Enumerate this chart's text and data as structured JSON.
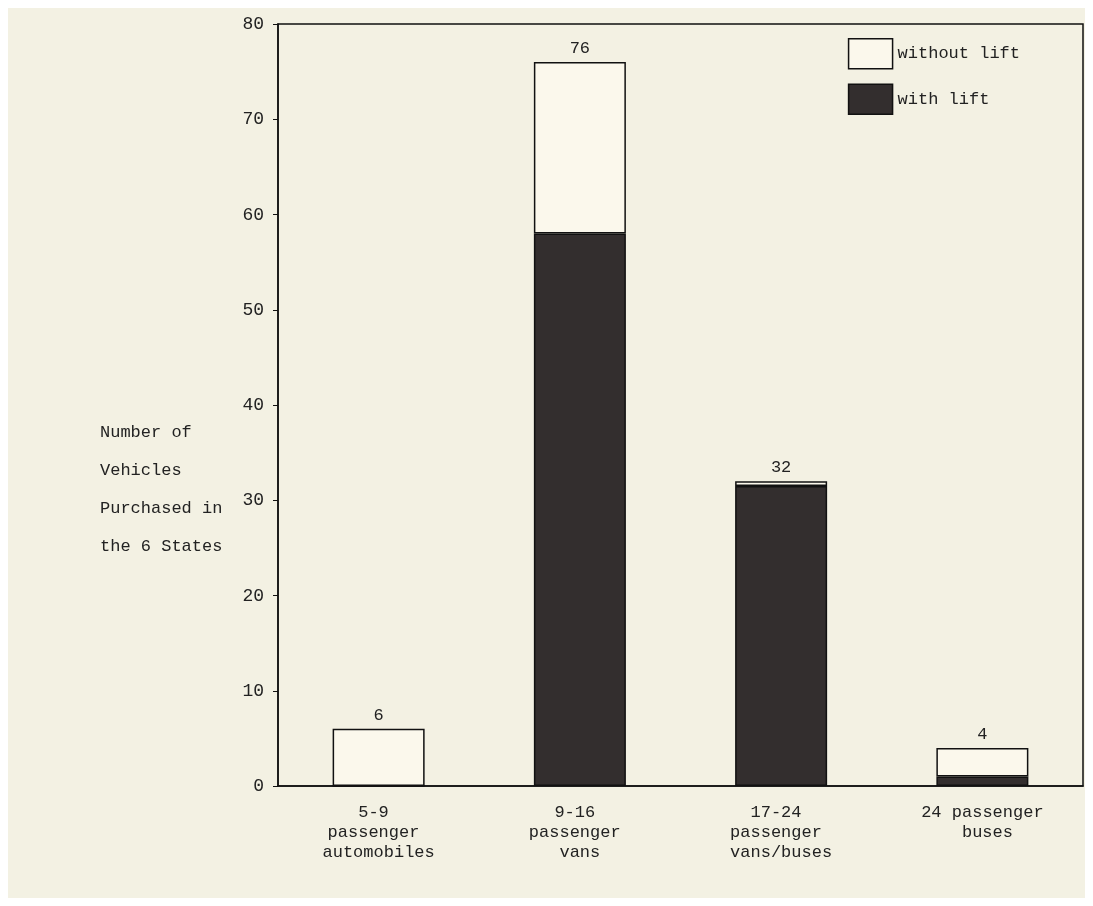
{
  "chart_data": {
    "type": "bar",
    "stacked": true,
    "ylabel": "Number of Vehicles Purchased in the 6 States",
    "categories": [
      "5-9 passenger automobiles",
      "9-16 passenger vans",
      "17-24 passenger vans/buses",
      "24 passenger buses"
    ],
    "series": [
      {
        "name": "with lift",
        "color": "#332e2e",
        "values": [
          0,
          58,
          31.5,
          1
        ]
      },
      {
        "name": "without lift",
        "color": "#fbf8ec",
        "values": [
          6,
          18,
          0.5,
          3
        ]
      }
    ],
    "totals": [
      "6",
      "76",
      "32",
      "4"
    ],
    "ylim": [
      0,
      80
    ],
    "yticks": [
      0,
      10,
      20,
      30,
      40,
      50,
      60,
      70,
      80
    ],
    "grid": false,
    "legend": "top right"
  }
}
